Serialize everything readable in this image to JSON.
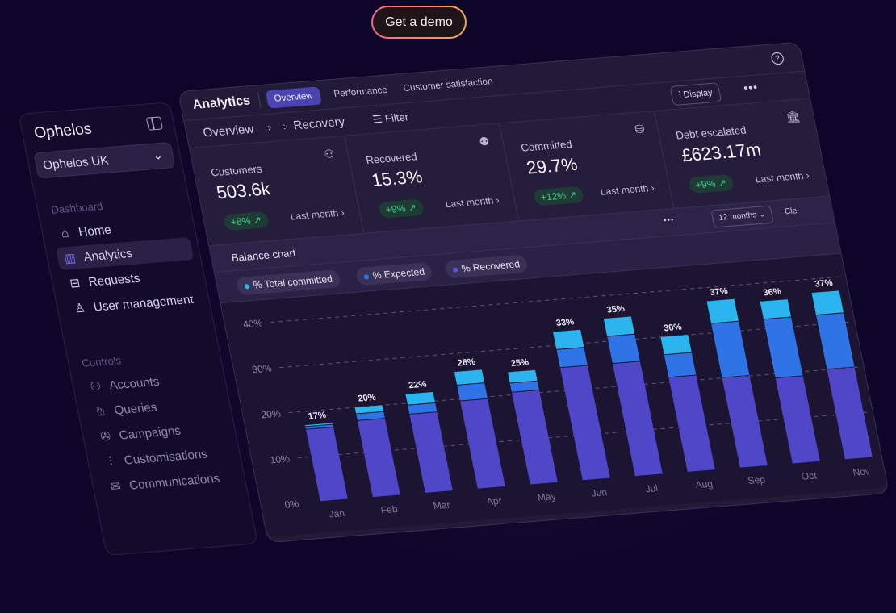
{
  "cta": {
    "label": "Get a demo"
  },
  "sidebar": {
    "brand": "Ophelos",
    "org": "Ophelos UK",
    "sections": [
      {
        "label": "Dashboard",
        "items": [
          {
            "label": "Home",
            "icon": "home-icon"
          },
          {
            "label": "Analytics",
            "icon": "bar-chart-icon",
            "active": true
          },
          {
            "label": "Requests",
            "icon": "inbox-icon"
          },
          {
            "label": "User management",
            "icon": "user-icon"
          }
        ]
      },
      {
        "label": "Controls",
        "items": [
          {
            "label": "Accounts",
            "icon": "users-icon"
          },
          {
            "label": "Queries",
            "icon": "question-icon"
          },
          {
            "label": "Campaigns",
            "icon": "megaphone-icon"
          },
          {
            "label": "Customisations",
            "icon": "sliders-icon"
          },
          {
            "label": "Communications",
            "icon": "mail-icon"
          }
        ]
      }
    ]
  },
  "header": {
    "title": "Analytics",
    "tabs": [
      "Overview",
      "Performance",
      "Customer satisfaction"
    ],
    "active_tab": "Overview",
    "display_label": "Display"
  },
  "breadcrumb": {
    "root": "Overview",
    "current": "Recovery",
    "filter_label": "Filter"
  },
  "cards": [
    {
      "label": "Customers",
      "value": "503.6k",
      "change": "+8% ↗",
      "period": "Last month"
    },
    {
      "label": "Recovered",
      "value": "15.3%",
      "change": "+9% ↗",
      "period": "Last month"
    },
    {
      "label": "Committed",
      "value": "29.7%",
      "change": "+12% ↗",
      "period": "Last month"
    },
    {
      "label": "Debt escalated",
      "value": "£623.17m",
      "change": "+9% ↗",
      "period": "Last month"
    }
  ],
  "chart_header": {
    "title": "Balance chart",
    "range": "12 months",
    "clear": "Cle"
  },
  "colors": {
    "committed": "#2bb4ee",
    "expected": "#2f74e6",
    "recovered": "#4f46c8",
    "positive": "#37d08a",
    "accent": "#4b43b0"
  },
  "chart_data": {
    "type": "bar",
    "stacked": true,
    "title": "Balance chart",
    "categories": [
      "Jan",
      "Feb",
      "Mar",
      "Apr",
      "May",
      "Jun",
      "Jul",
      "Aug",
      "Sep",
      "Oct",
      "Nov"
    ],
    "totals": [
      17,
      20,
      22,
      26,
      25,
      33,
      35,
      30,
      37,
      36,
      37
    ],
    "total_labels": [
      "17%",
      "20%",
      "22%",
      "26%",
      "25%",
      "33%",
      "35%",
      "30%",
      "37%",
      "36%",
      "37%"
    ],
    "series": [
      {
        "name": "% Recovered",
        "values": [
          16,
          17,
          17.5,
          19.5,
          20.5,
          25,
          25,
          21,
          20,
          19,
          20
        ]
      },
      {
        "name": "% Expected",
        "values": [
          0.6,
          1.5,
          2,
          3.5,
          2,
          4,
          6,
          5,
          12,
          13,
          12
        ]
      },
      {
        "name": "% Total committed",
        "values": [
          0.4,
          1.5,
          2.5,
          3,
          2.5,
          4,
          4,
          4,
          5,
          4,
          5
        ]
      }
    ],
    "legend": [
      "% Total committed",
      "% Expected",
      "% Recovered"
    ],
    "yticks": [
      "0%",
      "10%",
      "20%",
      "30%",
      "40%"
    ],
    "ylim": [
      0,
      40
    ],
    "grid": true
  }
}
